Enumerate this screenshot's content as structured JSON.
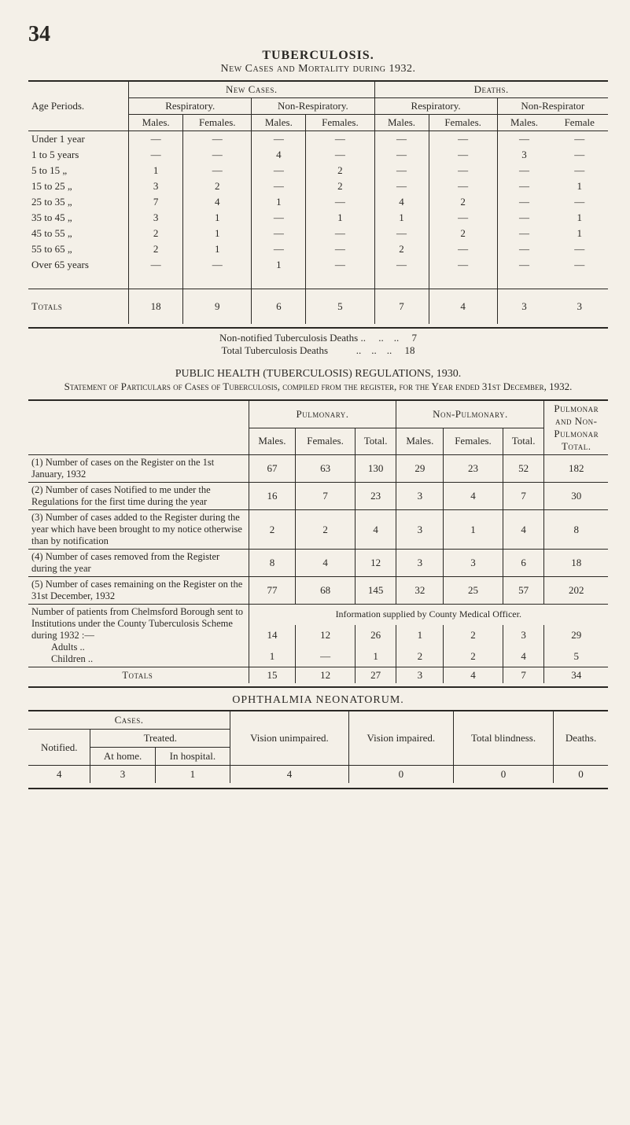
{
  "page_number": "34",
  "title": "TUBERCULOSIS.",
  "subtitle": "New Cases and Mortality during 1932.",
  "table1": {
    "col_age": "Age Periods.",
    "group_new": "New Cases.",
    "group_deaths": "Deaths.",
    "sub_resp": "Respiratory.",
    "sub_nonresp": "Non-Respiratory.",
    "sub_nonresp_deaths": "Non-Respirator",
    "col_m": "Males.",
    "col_f": "Females.",
    "col_f_cut": "Female",
    "rows": [
      {
        "age": "Under 1 year",
        "rm": "—",
        "rf": "—",
        "nrm": "—",
        "nrf": "—",
        "drm": "—",
        "drf": "—",
        "dnrm": "—",
        "dnrf": "—"
      },
      {
        "age": "1 to 5 years",
        "rm": "—",
        "rf": "—",
        "nrm": "4",
        "nrf": "—",
        "drm": "—",
        "drf": "—",
        "dnrm": "3",
        "dnrf": "—"
      },
      {
        "age": "5 to 15   „",
        "rm": "1",
        "rf": "—",
        "nrm": "—",
        "nrf": "2",
        "drm": "—",
        "drf": "—",
        "dnrm": "—",
        "dnrf": "—"
      },
      {
        "age": "15 to 25   „",
        "rm": "3",
        "rf": "2",
        "nrm": "—",
        "nrf": "2",
        "drm": "—",
        "drf": "—",
        "dnrm": "—",
        "dnrf": "1"
      },
      {
        "age": "25 to 35   „",
        "rm": "7",
        "rf": "4",
        "nrm": "1",
        "nrf": "—",
        "drm": "4",
        "drf": "2",
        "dnrm": "—",
        "dnrf": "—"
      },
      {
        "age": "35 to 45   „",
        "rm": "3",
        "rf": "1",
        "nrm": "—",
        "nrf": "1",
        "drm": "1",
        "drf": "—",
        "dnrm": "—",
        "dnrf": "1"
      },
      {
        "age": "45 to 55   „",
        "rm": "2",
        "rf": "1",
        "nrm": "—",
        "nrf": "—",
        "drm": "—",
        "drf": "2",
        "dnrm": "—",
        "dnrf": "1"
      },
      {
        "age": "55 to 65   „",
        "rm": "2",
        "rf": "1",
        "nrm": "—",
        "nrf": "—",
        "drm": "2",
        "drf": "—",
        "dnrm": "—",
        "dnrf": "—"
      },
      {
        "age": "Over 65 years",
        "rm": "—",
        "rf": "—",
        "nrm": "1",
        "nrf": "—",
        "drm": "—",
        "drf": "—",
        "dnrm": "—",
        "dnrf": "—"
      }
    ],
    "totals_label": "Totals",
    "totals": {
      "rm": "18",
      "rf": "9",
      "nrm": "6",
      "nrf": "5",
      "drm": "7",
      "drf": "4",
      "dnrm": "3",
      "dnrf": "3"
    },
    "note1_label": "Non-notified Tuberculosis Deaths ..",
    "note1_val": "7",
    "note2_label": "Total Tuberculosis Deaths",
    "note2_val": "18"
  },
  "reg": {
    "title": "PUBLIC HEALTH (TUBERCULOSIS) REGULATIONS, 1930.",
    "sub": "Statement of Particulars of Cases of Tuberculosis, compiled from the register, for the Year ended 31st December, 1932."
  },
  "table2": {
    "group_pulm": "Pulmonary.",
    "group_nonpulm": "Non-Pulmonary.",
    "col_last_1": "Pulmonar",
    "col_last_2": "and Non-",
    "col_last_3": "Pulmonar",
    "col_last_4": "Total.",
    "col_m": "Males.",
    "col_f": "Females.",
    "col_t": "Total.",
    "rows": [
      {
        "label": "(1) Number of cases on the Register on the 1st January, 1932",
        "pm": "67",
        "pf": "63",
        "pt": "130",
        "nm": "29",
        "nf": "23",
        "nt": "52",
        "tot": "182"
      },
      {
        "label": "(2) Number of cases Notified to me under the Regulations for the first time during the year",
        "pm": "16",
        "pf": "7",
        "pt": "23",
        "nm": "3",
        "nf": "4",
        "nt": "7",
        "tot": "30"
      },
      {
        "label": "(3) Number of cases added to the Register during the year which have been brought to my notice otherwise than by notification",
        "pm": "2",
        "pf": "2",
        "pt": "4",
        "nm": "3",
        "nf": "1",
        "nt": "4",
        "tot": "8"
      },
      {
        "label": "(4) Number of cases removed from the Register during the year",
        "pm": "8",
        "pf": "4",
        "pt": "12",
        "nm": "3",
        "nf": "3",
        "nt": "6",
        "tot": "18"
      },
      {
        "label": "(5) Number of cases remaining on the Register on the 31st December, 1932",
        "pm": "77",
        "pf": "68",
        "pt": "145",
        "nm": "32",
        "nf": "25",
        "nt": "57",
        "tot": "202"
      }
    ],
    "info_note": "Information supplied by County Medical Officer.",
    "block2_label": "Number of patients from Chelmsford Borough sent to Institutions under the County Tuberculosis Scheme during 1932 :—",
    "adults_label": "Adults ..",
    "adults": {
      "pm": "14",
      "pf": "12",
      "pt": "26",
      "nm": "1",
      "nf": "2",
      "nt": "3",
      "tot": "29"
    },
    "children_label": "Children ..",
    "children": {
      "pm": "1",
      "pf": "—",
      "pt": "1",
      "nm": "2",
      "nf": "2",
      "nt": "4",
      "tot": "5"
    },
    "totals_label": "Totals",
    "totals": {
      "pm": "15",
      "pf": "12",
      "pt": "27",
      "nm": "3",
      "nf": "4",
      "nt": "7",
      "tot": "34"
    }
  },
  "oph": {
    "title": "OPHTHALMIA NEONATORUM.",
    "cases": "Cases.",
    "notified": "Notified.",
    "treated": "Treated.",
    "athome": "At home.",
    "inhosp": "In hospital.",
    "vun": "Vision unimpaired.",
    "vim": "Vision impaired.",
    "blind": "Total blindness.",
    "deaths": "Deaths.",
    "row": {
      "notified": "4",
      "athome": "3",
      "inhosp": "1",
      "vun": "4",
      "vim": "0",
      "blind": "0",
      "deaths": "0"
    }
  }
}
